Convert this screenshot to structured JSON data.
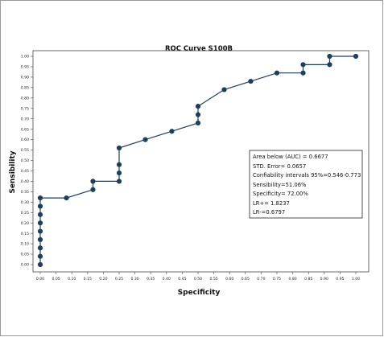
{
  "chart_data": {
    "type": "line",
    "title": "ROC Curve S100B",
    "xlabel": "Specificity",
    "ylabel": "Sensibility",
    "xlim": [
      0,
      1
    ],
    "ylim": [
      0,
      1
    ],
    "xticks": [
      "0.00",
      "0.05",
      "0.10",
      "0.15",
      "0.20",
      "0.25",
      "0.30",
      "0.35",
      "0.40",
      "0.45",
      "0.50",
      "0.55",
      "0.60",
      "0.65",
      "0.70",
      "0.75",
      "0.80",
      "0.85",
      "0.90",
      "0.95",
      "1.00"
    ],
    "yticks": [
      "0.00",
      "0.05",
      "0.10",
      "0.15",
      "0.20",
      "0.25",
      "0.30",
      "0.35",
      "0.40",
      "0.45",
      "0.50",
      "0.55",
      "0.60",
      "0.65",
      "0.70",
      "0.75",
      "0.80",
      "0.85",
      "0.90",
      "0.95",
      "1.00"
    ],
    "grid": false,
    "series": [
      {
        "color": "#1d3f5e",
        "points": [
          [
            0.0,
            0.0
          ],
          [
            0.0,
            0.04
          ],
          [
            0.0,
            0.08
          ],
          [
            0.0,
            0.12
          ],
          [
            0.0,
            0.16
          ],
          [
            0.0,
            0.2
          ],
          [
            0.0,
            0.24
          ],
          [
            0.0,
            0.28
          ],
          [
            0.0,
            0.32
          ],
          [
            0.083,
            0.32
          ],
          [
            0.167,
            0.36
          ],
          [
            0.167,
            0.4
          ],
          [
            0.25,
            0.4
          ],
          [
            0.25,
            0.44
          ],
          [
            0.25,
            0.48
          ],
          [
            0.25,
            0.56
          ],
          [
            0.333,
            0.6
          ],
          [
            0.417,
            0.64
          ],
          [
            0.5,
            0.68
          ],
          [
            0.5,
            0.72
          ],
          [
            0.5,
            0.76
          ],
          [
            0.583,
            0.84
          ],
          [
            0.667,
            0.88
          ],
          [
            0.75,
            0.92
          ],
          [
            0.833,
            0.92
          ],
          [
            0.833,
            0.96
          ],
          [
            0.917,
            0.96
          ],
          [
            0.917,
            1.0
          ],
          [
            1.0,
            1.0
          ]
        ]
      }
    ],
    "annotations": [
      "Area below (AUC) = 0.6677",
      "STD. Error= 0.0657",
      "Confiability intervals 95%=0.546-0.773",
      "Sensibility=51.06%",
      "Specificity= 72.00%",
      "LR+= 1.8237",
      "LR-=0.6797"
    ]
  }
}
